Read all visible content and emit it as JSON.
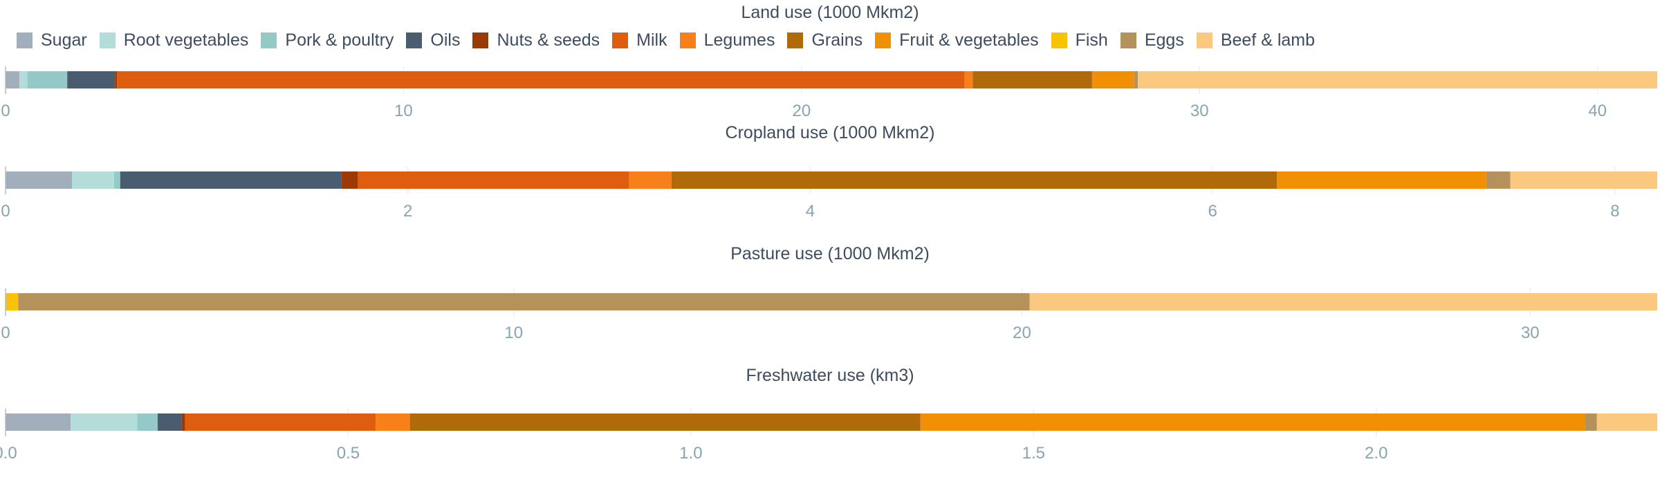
{
  "chart_data": {
    "type": "bar",
    "orientation": "horizontal",
    "stacked": true,
    "legend_position": "top",
    "grid": true,
    "colors": {
      "Sugar": "#a2aebb",
      "Root vegetables": "#b4dcd9",
      "Pork & poultry": "#95c9c8",
      "Oils": "#495c70",
      "Nuts & seeds": "#9c3a06",
      "Milk": "#de5d0e",
      "Legumes": "#f7801a",
      "Grains": "#b06a09",
      "Fruit & vegetables": "#f18f05",
      "Fish": "#f7c304",
      "Eggs": "#b5915c",
      "Beef & lamb": "#fac97f"
    },
    "legend": [
      "Sugar",
      "Root vegetables",
      "Pork & poultry",
      "Oils",
      "Nuts & seeds",
      "Milk",
      "Legumes",
      "Grains",
      "Fruit & vegetables",
      "Fish",
      "Eggs",
      "Beef & lamb"
    ],
    "panels": [
      {
        "title": "Land use (1000 Mkm2)",
        "xlim": [
          0,
          41.5
        ],
        "ticks": [
          0,
          10,
          20,
          30,
          40
        ],
        "tick_labels": [
          "0",
          "10",
          "20",
          "30",
          "40"
        ],
        "segments": [
          {
            "name": "Sugar",
            "value": 0.35
          },
          {
            "name": "Root vegetables",
            "value": 0.2
          },
          {
            "name": "Pork & poultry",
            "value": 1.0
          },
          {
            "name": "Oils",
            "value": 1.2
          },
          {
            "name": "Nuts & seeds",
            "value": 0.05
          },
          {
            "name": "Milk",
            "value": 21.3
          },
          {
            "name": "Legumes",
            "value": 0.2
          },
          {
            "name": "Grains",
            "value": 3.0
          },
          {
            "name": "Fruit & vegetables",
            "value": 1.05
          },
          {
            "name": "Fish",
            "value": 0.0
          },
          {
            "name": "Eggs",
            "value": 0.1
          },
          {
            "name": "Beef & lamb",
            "value": 13.05
          }
        ]
      },
      {
        "title": "Cropland use (1000 Mkm2)",
        "xlim": [
          0,
          8.21
        ],
        "ticks": [
          0,
          2,
          4,
          6,
          8
        ],
        "tick_labels": [
          "0",
          "2",
          "4",
          "6",
          "8"
        ],
        "segments": [
          {
            "name": "Sugar",
            "value": 0.33
          },
          {
            "name": "Root vegetables",
            "value": 0.21
          },
          {
            "name": "Pork & poultry",
            "value": 0.03
          },
          {
            "name": "Oils",
            "value": 1.1
          },
          {
            "name": "Nuts & seeds",
            "value": 0.08
          },
          {
            "name": "Milk",
            "value": 1.35
          },
          {
            "name": "Legumes",
            "value": 0.21
          },
          {
            "name": "Grains",
            "value": 3.01
          },
          {
            "name": "Fruit & vegetables",
            "value": 1.04
          },
          {
            "name": "Fish",
            "value": 0.0
          },
          {
            "name": "Eggs",
            "value": 0.12
          },
          {
            "name": "Beef & lamb",
            "value": 0.73
          }
        ]
      },
      {
        "title": "Pasture use (1000 Mkm2)",
        "xlim": [
          0,
          32.5
        ],
        "ticks": [
          0,
          10,
          20,
          30
        ],
        "tick_labels": [
          "0",
          "10",
          "20",
          "30"
        ],
        "segments": [
          {
            "name": "Sugar",
            "value": 0.0
          },
          {
            "name": "Root vegetables",
            "value": 0.0
          },
          {
            "name": "Pork & poultry",
            "value": 0.0
          },
          {
            "name": "Oils",
            "value": 0.0
          },
          {
            "name": "Nuts & seeds",
            "value": 0.0
          },
          {
            "name": "Milk",
            "value": 0.0
          },
          {
            "name": "Legumes",
            "value": 0.0
          },
          {
            "name": "Grains",
            "value": 0.0
          },
          {
            "name": "Fruit & vegetables",
            "value": 0.0
          },
          {
            "name": "Fish",
            "value": 0.25
          },
          {
            "name": "Eggs",
            "value": 19.9
          },
          {
            "name": "Beef & lamb",
            "value": 12.35
          }
        ]
      },
      {
        "title": "Freshwater use (km3)",
        "xlim": [
          0,
          2.41
        ],
        "ticks": [
          0,
          0.5,
          1,
          1.5,
          2
        ],
        "tick_labels": [
          "0.0",
          "0.5",
          "1.0",
          "1.5",
          "2.0"
        ],
        "segments": [
          {
            "name": "Sugar",
            "value": 0.095
          },
          {
            "name": "Root vegetables",
            "value": 0.097
          },
          {
            "name": "Pork & poultry",
            "value": 0.03
          },
          {
            "name": "Oils",
            "value": 0.035
          },
          {
            "name": "Nuts & seeds",
            "value": 0.005
          },
          {
            "name": "Milk",
            "value": 0.278
          },
          {
            "name": "Legumes",
            "value": 0.05
          },
          {
            "name": "Grains",
            "value": 0.745
          },
          {
            "name": "Fruit & vegetables",
            "value": 0.97
          },
          {
            "name": "Fish",
            "value": 0.0
          },
          {
            "name": "Eggs",
            "value": 0.017
          },
          {
            "name": "Beef & lamb",
            "value": 0.088
          }
        ]
      }
    ]
  }
}
